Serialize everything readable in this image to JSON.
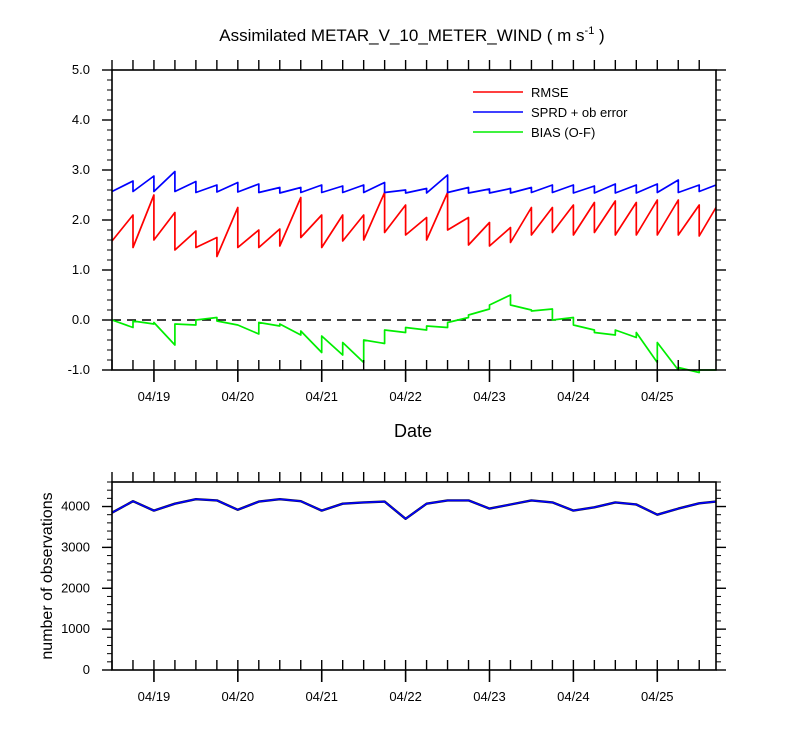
{
  "colors": {
    "rmse": "#ff0000",
    "sprd": "#0000ff",
    "bias": "#00ee00",
    "obs": "#0000ff",
    "obs_shadow": "#111111",
    "zero_line": "#000000"
  },
  "chart_data": [
    {
      "type": "line",
      "title": "Assimilated METAR_V_10_METER_WIND ( m s",
      "title_sup": "-1",
      "title_end": " )",
      "xlabel": "Date",
      "ylabel": "",
      "xlim": [
        0,
        7.2
      ],
      "ylim": [
        -1.0,
        5.0
      ],
      "y_ticks": [
        -1.0,
        0.0,
        1.0,
        2.0,
        3.0,
        4.0,
        5.0
      ],
      "y_tick_labels": [
        "-1.0",
        "0.0",
        "1.0",
        "2.0",
        "3.0",
        "4.0",
        "5.0"
      ],
      "x_tick_labels": [
        "04/19",
        "04/20",
        "04/21",
        "04/22",
        "04/23",
        "04/24",
        "04/25"
      ],
      "legend_position": "top-right",
      "zero_line": true,
      "series": [
        {
          "name": "RMSE",
          "x": [
            0,
            0.25,
            0.25,
            0.5,
            0.5,
            0.75,
            0.75,
            1.0,
            1.0,
            1.25,
            1.25,
            1.5,
            1.5,
            1.75,
            1.75,
            2.0,
            2.0,
            2.25,
            2.25,
            2.5,
            2.5,
            2.75,
            2.75,
            3.0,
            3.0,
            3.25,
            3.25,
            3.5,
            3.5,
            3.75,
            3.75,
            4.0,
            4.0,
            4.25,
            4.25,
            4.5,
            4.5,
            4.75,
            4.75,
            5.0,
            5.0,
            5.25,
            5.25,
            5.5,
            5.5,
            5.75,
            5.75,
            6.0,
            6.0,
            6.25,
            6.25,
            6.5,
            6.5,
            6.75,
            6.75,
            7.0,
            7.0,
            7.2
          ],
          "values": [
            1.58,
            2.1,
            1.45,
            2.5,
            1.6,
            2.15,
            1.4,
            1.78,
            1.45,
            1.65,
            1.27,
            2.25,
            1.45,
            1.8,
            1.45,
            1.82,
            1.48,
            2.45,
            1.65,
            2.1,
            1.45,
            2.1,
            1.58,
            2.1,
            1.6,
            2.55,
            1.75,
            2.3,
            1.7,
            2.05,
            1.6,
            2.55,
            1.8,
            2.05,
            1.5,
            1.95,
            1.48,
            1.85,
            1.55,
            2.25,
            1.7,
            2.25,
            1.75,
            2.3,
            1.7,
            2.35,
            1.75,
            2.38,
            1.7,
            2.35,
            1.7,
            2.4,
            1.7,
            2.4,
            1.7,
            2.3,
            1.68,
            2.25
          ]
        },
        {
          "name": "SPRD + ob error",
          "x": [
            0,
            0.25,
            0.25,
            0.5,
            0.5,
            0.75,
            0.75,
            1.0,
            1.0,
            1.25,
            1.25,
            1.5,
            1.5,
            1.75,
            1.75,
            2.0,
            2.0,
            2.25,
            2.25,
            2.5,
            2.5,
            2.75,
            2.75,
            3.0,
            3.0,
            3.25,
            3.25,
            3.5,
            3.5,
            3.75,
            3.75,
            4.0,
            4.0,
            4.25,
            4.25,
            4.5,
            4.5,
            4.75,
            4.75,
            5.0,
            5.0,
            5.25,
            5.25,
            5.5,
            5.5,
            5.75,
            5.75,
            6.0,
            6.0,
            6.25,
            6.25,
            6.5,
            6.5,
            6.75,
            6.75,
            7.0,
            7.0,
            7.2
          ],
          "values": [
            2.57,
            2.78,
            2.57,
            2.88,
            2.57,
            2.97,
            2.57,
            2.77,
            2.55,
            2.7,
            2.56,
            2.75,
            2.56,
            2.72,
            2.55,
            2.65,
            2.54,
            2.65,
            2.55,
            2.7,
            2.55,
            2.68,
            2.55,
            2.7,
            2.55,
            2.75,
            2.55,
            2.6,
            2.54,
            2.63,
            2.54,
            2.9,
            2.55,
            2.65,
            2.54,
            2.62,
            2.54,
            2.63,
            2.54,
            2.65,
            2.55,
            2.7,
            2.55,
            2.7,
            2.54,
            2.68,
            2.54,
            2.72,
            2.54,
            2.7,
            2.54,
            2.72,
            2.55,
            2.8,
            2.55,
            2.7,
            2.57,
            2.7
          ]
        },
        {
          "name": "BIAS (O-F)",
          "x": [
            0,
            0.25,
            0.25,
            0.5,
            0.5,
            0.75,
            0.75,
            1.0,
            1.0,
            1.25,
            1.25,
            1.5,
            1.5,
            1.75,
            1.75,
            2.0,
            2.0,
            2.25,
            2.25,
            2.5,
            2.5,
            2.75,
            2.75,
            3.0,
            3.0,
            3.25,
            3.25,
            3.5,
            3.5,
            3.75,
            3.75,
            4.0,
            4.0,
            4.25,
            4.25,
            4.5,
            4.5,
            4.75,
            4.75,
            5.0,
            5.0,
            5.25,
            5.25,
            5.5,
            5.5,
            5.75,
            5.75,
            6.0,
            6.0,
            6.25,
            6.25,
            6.5,
            6.5,
            6.75,
            6.75,
            7.0,
            7.0,
            7.2
          ],
          "values": [
            0.0,
            -0.15,
            -0.02,
            -0.08,
            -0.05,
            -0.5,
            -0.08,
            -0.1,
            0.0,
            0.05,
            -0.02,
            -0.1,
            -0.1,
            -0.28,
            -0.05,
            -0.12,
            -0.08,
            -0.3,
            -0.22,
            -0.65,
            -0.32,
            -0.7,
            -0.45,
            -0.85,
            -0.4,
            -0.47,
            -0.2,
            -0.25,
            -0.15,
            -0.2,
            -0.12,
            -0.15,
            -0.05,
            0.05,
            0.1,
            0.22,
            0.3,
            0.5,
            0.3,
            0.2,
            0.18,
            0.22,
            0.0,
            0.05,
            -0.1,
            -0.2,
            -0.25,
            -0.3,
            -0.2,
            -0.35,
            -0.25,
            -0.85,
            -0.45,
            -1.0,
            -0.95,
            -1.05,
            -1.0,
            -1.0
          ]
        }
      ]
    },
    {
      "type": "line",
      "title": "",
      "xlabel": "",
      "ylabel": "number of observations",
      "xlim": [
        0,
        7.2
      ],
      "ylim": [
        0,
        4600
      ],
      "y_ticks": [
        0,
        1000,
        2000,
        3000,
        4000
      ],
      "y_tick_labels": [
        "0",
        "1000",
        "2000",
        "3000",
        "4000"
      ],
      "x_tick_labels": [
        "04/19",
        "04/20",
        "04/21",
        "04/22",
        "04/23",
        "04/24",
        "04/25"
      ],
      "series": [
        {
          "name": "number of observations",
          "x": [
            0,
            0.25,
            0.5,
            0.75,
            1.0,
            1.25,
            1.5,
            1.75,
            2.0,
            2.25,
            2.5,
            2.75,
            3.0,
            3.25,
            3.5,
            3.75,
            4.0,
            4.25,
            4.5,
            4.75,
            5.0,
            5.25,
            5.5,
            5.75,
            6.0,
            6.25,
            6.5,
            6.75,
            7.0,
            7.2
          ],
          "values": [
            3850,
            4130,
            3900,
            4070,
            4180,
            4150,
            3920,
            4120,
            4180,
            4130,
            3900,
            4070,
            4100,
            4120,
            3700,
            4070,
            4150,
            4150,
            3950,
            4050,
            4150,
            4100,
            3900,
            3980,
            4100,
            4050,
            3800,
            3950,
            4080,
            4120
          ]
        }
      ]
    }
  ]
}
